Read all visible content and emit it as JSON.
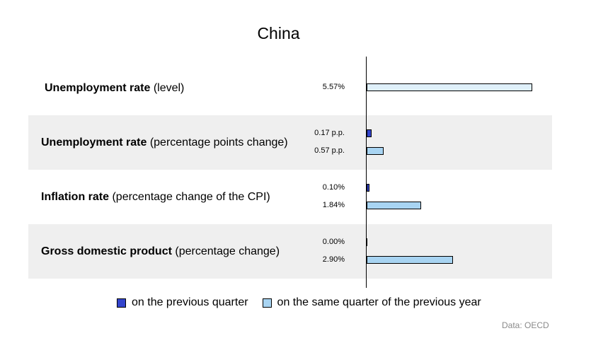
{
  "chart_data": {
    "type": "bar",
    "orientation": "horizontal",
    "title": "China",
    "categories": [
      {
        "bold": "Unemployment rate",
        "rest": " (level)"
      },
      {
        "bold": "Unemployment rate",
        "rest": " (percentage points change)"
      },
      {
        "bold": "Inflation rate",
        "rest": " (percentage change of the CPI)"
      },
      {
        "bold": "Gross domestic product",
        "rest": " (percentage change)"
      }
    ],
    "series": [
      {
        "name": "on the previous quarter",
        "color": "#3344cc",
        "values": [
          null,
          0.17,
          0.1,
          0.0
        ],
        "labels": [
          "",
          "0.17 p.p.",
          "0.10%",
          "0.00%"
        ]
      },
      {
        "name": "on the same quarter of the previous year",
        "color": "#a8d4f2",
        "level_color": "#dff0fa",
        "values": [
          5.57,
          0.57,
          1.84,
          2.9
        ],
        "labels": [
          "5.57%",
          "0.57 p.p.",
          "1.84%",
          "2.90%"
        ]
      }
    ],
    "xlim": [
      0,
      5.57
    ],
    "grid": false,
    "legend_position": "bottom",
    "source": "Data: OECD"
  }
}
